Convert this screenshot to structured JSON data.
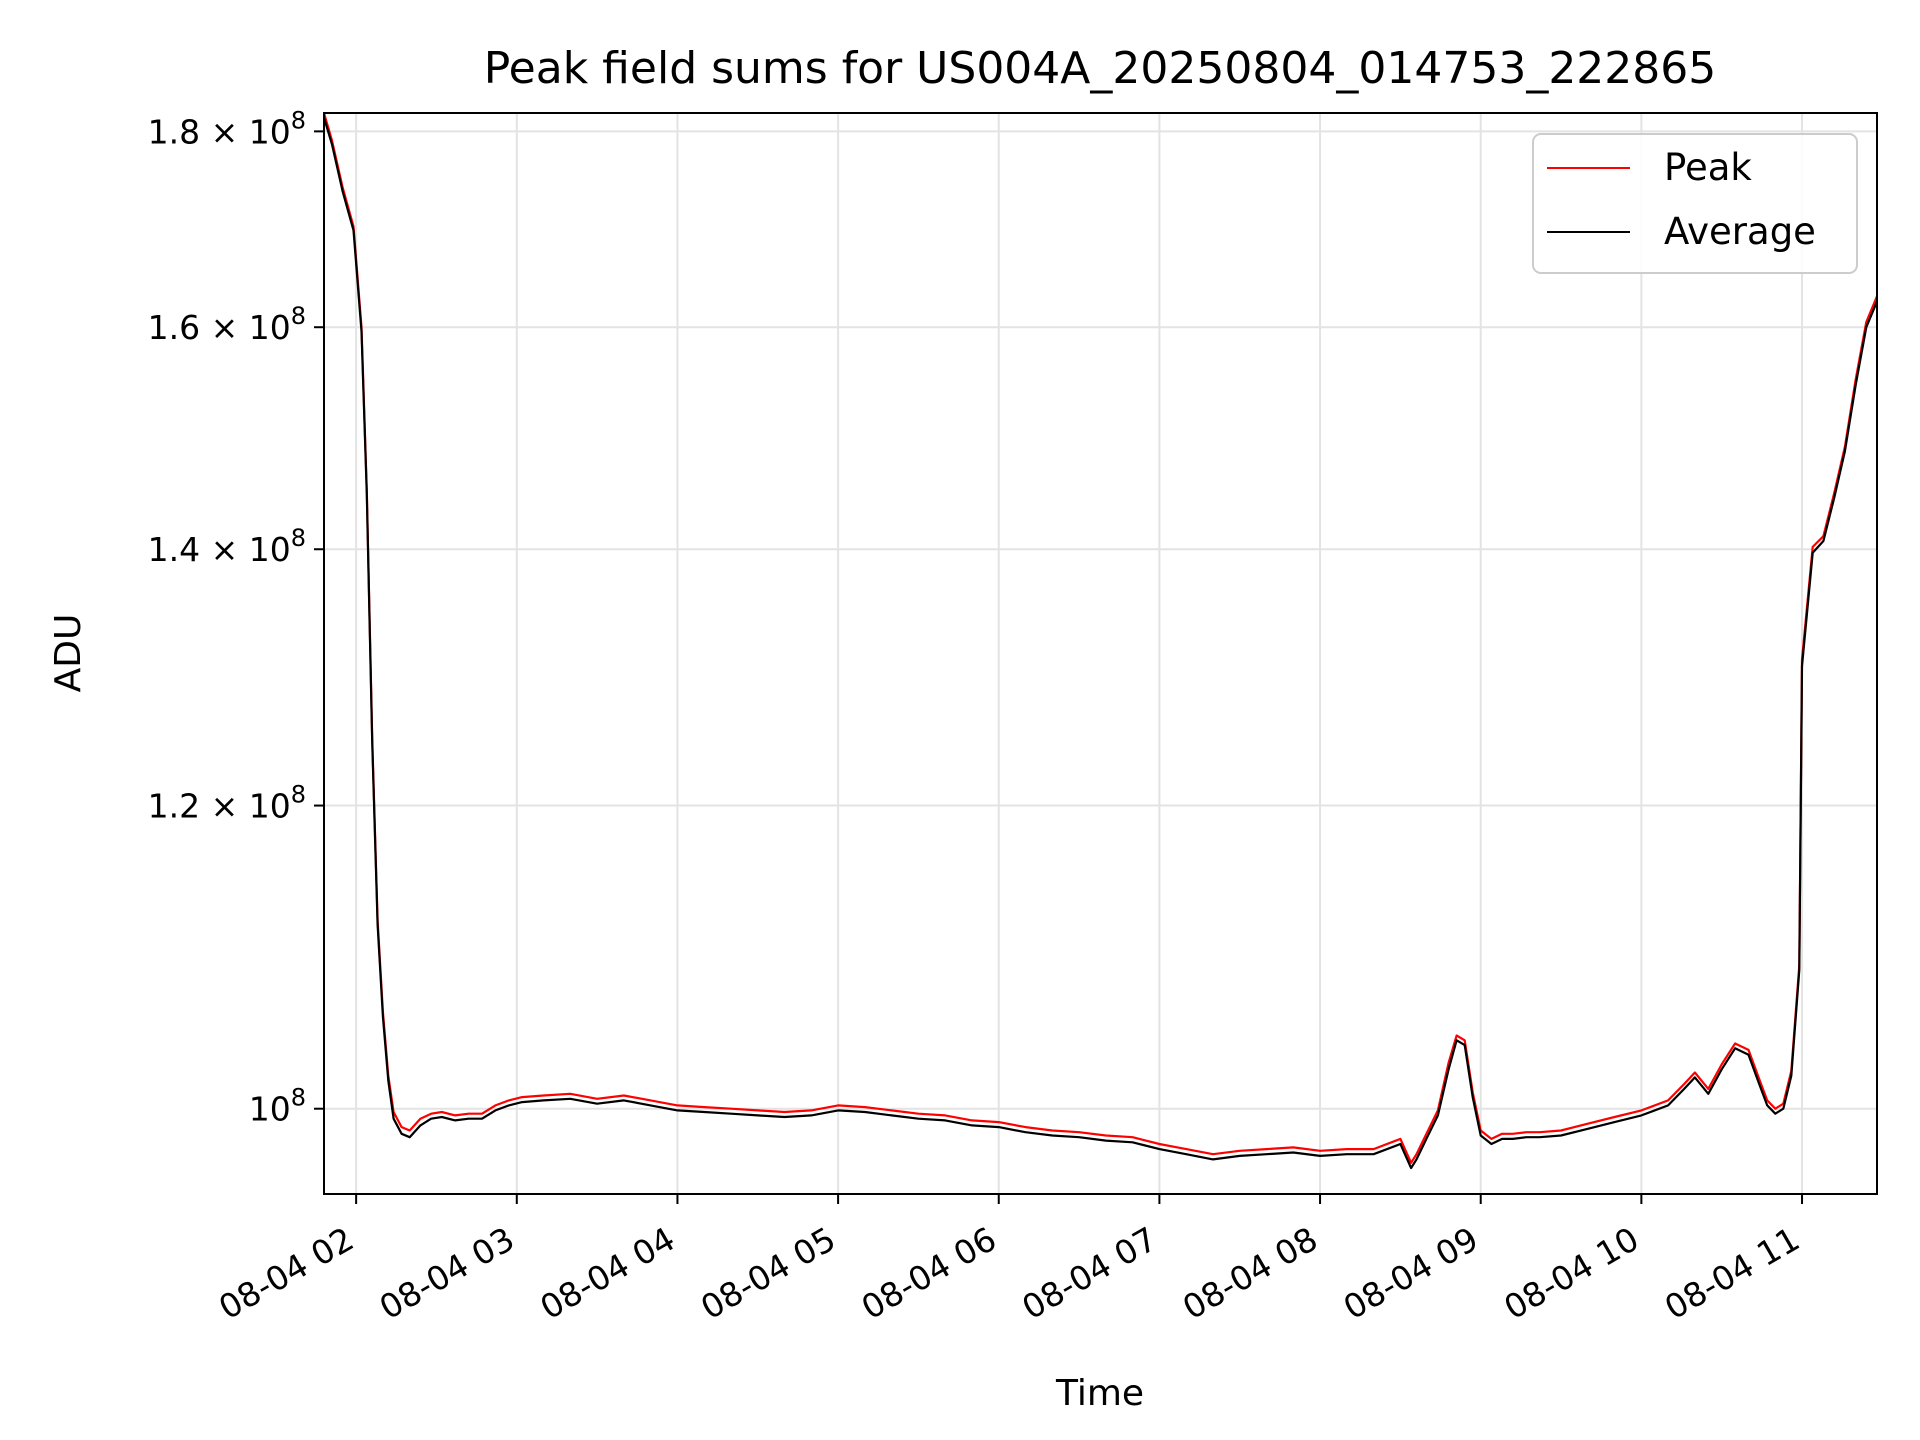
{
  "chart_data": {
    "type": "line",
    "title": "Peak field sums for US004A_20250804_014753_222865",
    "xlabel": "Time",
    "ylabel": "ADU",
    "x_scale": "time",
    "y_scale": "log",
    "xlim": [
      "2025-08-04 01:48",
      "2025-08-04 11:28"
    ],
    "ylim": [
      95000000,
      182000000
    ],
    "grid": true,
    "legend_position": "top-right",
    "x_ticks": [
      {
        "label": "08-04 02",
        "value": "2025-08-04 02:00"
      },
      {
        "label": "08-04 03",
        "value": "2025-08-04 03:00"
      },
      {
        "label": "08-04 04",
        "value": "2025-08-04 04:00"
      },
      {
        "label": "08-04 05",
        "value": "2025-08-04 05:00"
      },
      {
        "label": "08-04 06",
        "value": "2025-08-04 06:00"
      },
      {
        "label": "08-04 07",
        "value": "2025-08-04 07:00"
      },
      {
        "label": "08-04 08",
        "value": "2025-08-04 08:00"
      },
      {
        "label": "08-04 09",
        "value": "2025-08-04 09:00"
      },
      {
        "label": "08-04 10",
        "value": "2025-08-04 10:00"
      },
      {
        "label": "08-04 11",
        "value": "2025-08-04 11:00"
      }
    ],
    "y_ticks": [
      {
        "mantissa": "",
        "exponent": "8",
        "value": 100000000
      },
      {
        "mantissa": "1.2",
        "exponent": "8",
        "value": 120000000
      },
      {
        "mantissa": "1.4",
        "exponent": "8",
        "value": 140000000
      },
      {
        "mantissa": "1.6",
        "exponent": "8",
        "value": 160000000
      },
      {
        "mantissa": "1.8",
        "exponent": "8",
        "value": 180000000
      }
    ],
    "x": [
      "2025-08-04 01:48",
      "2025-08-04 01:51",
      "2025-08-04 01:55",
      "2025-08-04 01:59",
      "2025-08-04 02:02",
      "2025-08-04 02:04",
      "2025-08-04 02:06",
      "2025-08-04 02:08",
      "2025-08-04 02:10",
      "2025-08-04 02:12",
      "2025-08-04 02:14",
      "2025-08-04 02:17",
      "2025-08-04 02:20",
      "2025-08-04 02:24",
      "2025-08-04 02:28",
      "2025-08-04 02:32",
      "2025-08-04 02:37",
      "2025-08-04 02:42",
      "2025-08-04 02:47",
      "2025-08-04 02:52",
      "2025-08-04 02:57",
      "2025-08-04 03:02",
      "2025-08-04 03:10",
      "2025-08-04 03:20",
      "2025-08-04 03:30",
      "2025-08-04 03:40",
      "2025-08-04 03:50",
      "2025-08-04 04:00",
      "2025-08-04 04:10",
      "2025-08-04 04:20",
      "2025-08-04 04:30",
      "2025-08-04 04:40",
      "2025-08-04 04:50",
      "2025-08-04 05:00",
      "2025-08-04 05:10",
      "2025-08-04 05:20",
      "2025-08-04 05:30",
      "2025-08-04 05:40",
      "2025-08-04 05:50",
      "2025-08-04 06:00",
      "2025-08-04 06:10",
      "2025-08-04 06:20",
      "2025-08-04 06:30",
      "2025-08-04 06:40",
      "2025-08-04 06:50",
      "2025-08-04 07:00",
      "2025-08-04 07:10",
      "2025-08-04 07:20",
      "2025-08-04 07:30",
      "2025-08-04 07:40",
      "2025-08-04 07:50",
      "2025-08-04 08:00",
      "2025-08-04 08:10",
      "2025-08-04 08:20",
      "2025-08-04 08:30",
      "2025-08-04 08:34",
      "2025-08-04 08:36",
      "2025-08-04 08:40",
      "2025-08-04 08:44",
      "2025-08-04 08:48",
      "2025-08-04 08:51",
      "2025-08-04 08:54",
      "2025-08-04 08:57",
      "2025-08-04 09:00",
      "2025-08-04 09:04",
      "2025-08-04 09:08",
      "2025-08-04 09:12",
      "2025-08-04 09:17",
      "2025-08-04 09:22",
      "2025-08-04 09:30",
      "2025-08-04 09:40",
      "2025-08-04 09:50",
      "2025-08-04 10:00",
      "2025-08-04 10:10",
      "2025-08-04 10:16",
      "2025-08-04 10:20",
      "2025-08-04 10:25",
      "2025-08-04 10:30",
      "2025-08-04 10:35",
      "2025-08-04 10:40",
      "2025-08-04 10:44",
      "2025-08-04 10:47",
      "2025-08-04 10:50",
      "2025-08-04 10:53",
      "2025-08-04 10:56",
      "2025-08-04 10:59",
      "2025-08-04 11:00",
      "2025-08-04 11:04",
      "2025-08-04 11:08",
      "2025-08-04 11:12",
      "2025-08-04 11:16",
      "2025-08-04 11:20",
      "2025-08-04 11:24",
      "2025-08-04 11:28"
    ],
    "series": [
      {
        "name": "Peak",
        "color": "#ff0000",
        "values": [
          182000000,
          179000000,
          174000000,
          170000000,
          160000000,
          145000000,
          125000000,
          112000000,
          106000000,
          102000000,
          99800000,
          98900000,
          98700000,
          99400000,
          99700000,
          99800000,
          99600000,
          99700000,
          99700000,
          100200000,
          100500000,
          100700000,
          100800000,
          100900000,
          100600000,
          100800000,
          100500000,
          100200000,
          100100000,
          100000000,
          99900000,
          99800000,
          99900000,
          100200000,
          100100000,
          99900000,
          99700000,
          99600000,
          99300000,
          99200000,
          98900000,
          98700000,
          98600000,
          98400000,
          98300000,
          97900000,
          97600000,
          97300000,
          97500000,
          97600000,
          97700000,
          97500000,
          97600000,
          97600000,
          98200000,
          96800000,
          97300000,
          98600000,
          99900000,
          102800000,
          104500000,
          104200000,
          101000000,
          98700000,
          98200000,
          98500000,
          98500000,
          98600000,
          98600000,
          98700000,
          99100000,
          99500000,
          99900000,
          100500000,
          101500000,
          102200000,
          101200000,
          102700000,
          104000000,
          103600000,
          101800000,
          100500000,
          100000000,
          100300000,
          102300000,
          109000000,
          131000000,
          140200000,
          141100000,
          144800000,
          148900000,
          155000000,
          160500000,
          163000000
        ]
      },
      {
        "name": "Average",
        "color": "#000000",
        "values": [
          181500000,
          178600000,
          173600000,
          169600000,
          159600000,
          144700000,
          124700000,
          111700000,
          105700000,
          101700000,
          99400000,
          98500000,
          98300000,
          99000000,
          99400000,
          99500000,
          99300000,
          99400000,
          99400000,
          99900000,
          100200000,
          100400000,
          100500000,
          100600000,
          100300000,
          100500000,
          100200000,
          99900000,
          99800000,
          99700000,
          99600000,
          99500000,
          99600000,
          99900000,
          99800000,
          99600000,
          99400000,
          99300000,
          99000000,
          98900000,
          98600000,
          98400000,
          98300000,
          98100000,
          98000000,
          97600000,
          97300000,
          97000000,
          97200000,
          97300000,
          97400000,
          97200000,
          97300000,
          97300000,
          97900000,
          96500000,
          97000000,
          98300000,
          99600000,
          102400000,
          104200000,
          103900000,
          100700000,
          98400000,
          97900000,
          98200000,
          98200000,
          98300000,
          98300000,
          98400000,
          98800000,
          99200000,
          99600000,
          100200000,
          101200000,
          101900000,
          100900000,
          102400000,
          103700000,
          103300000,
          101500000,
          100200000,
          99700000,
          100000000,
          102000000,
          108700000,
          130500000,
          139700000,
          140700000,
          144400000,
          148500000,
          154500000,
          160000000,
          162500000
        ]
      }
    ]
  }
}
